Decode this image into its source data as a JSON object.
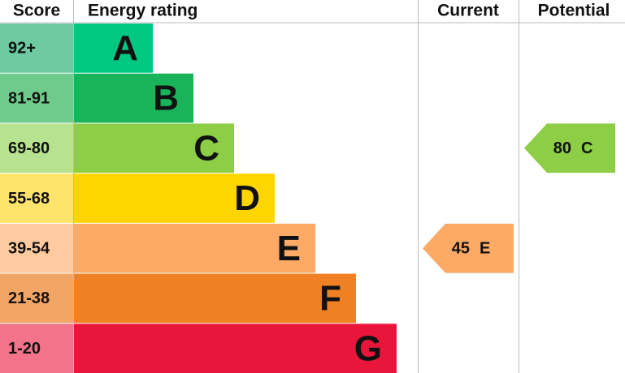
{
  "headers": {
    "score": "Score",
    "rating": "Energy rating",
    "current": "Current",
    "potential": "Potential"
  },
  "bands": [
    {
      "score": "92+",
      "letter": "A",
      "color": "#00c781",
      "score_color": "#6dcaa1"
    },
    {
      "score": "81-91",
      "letter": "B",
      "color": "#19b459",
      "score_color": "#6fcb8c"
    },
    {
      "score": "69-80",
      "letter": "C",
      "color": "#8dce46",
      "score_color": "#b7e28f"
    },
    {
      "score": "55-68",
      "letter": "D",
      "color": "#ffd500",
      "score_color": "#ffe36b"
    },
    {
      "score": "39-54",
      "letter": "E",
      "color": "#fcaa65",
      "score_color": "#fdcb9f"
    },
    {
      "score": "21-38",
      "letter": "F",
      "color": "#ef8023",
      "score_color": "#f3a565"
    },
    {
      "score": "1-20",
      "letter": "G",
      "color": "#e9153b",
      "score_color": "#f2738a"
    }
  ],
  "current": {
    "value": 45,
    "letter": "E"
  },
  "potential": {
    "value": 80,
    "letter": "C"
  }
}
